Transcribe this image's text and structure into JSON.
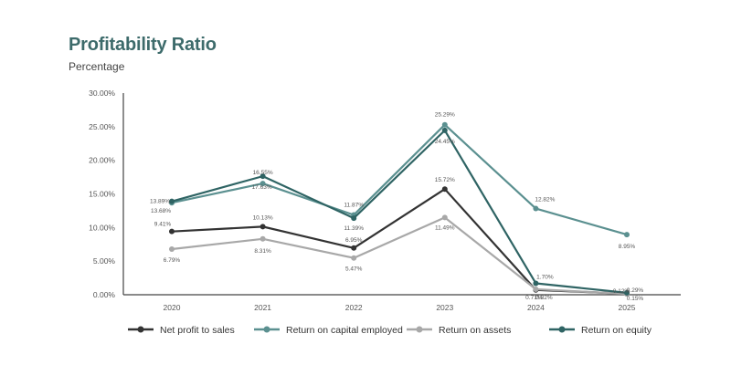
{
  "header": {
    "title": "Profitability Ratio",
    "subtitle": "Percentage"
  },
  "chart_data": {
    "type": "line",
    "title": "Profitability Ratio",
    "subtitle": "Percentage",
    "x": [
      "2020",
      "2021",
      "2022",
      "2023",
      "2024",
      "2025"
    ],
    "ylim": [
      0,
      30
    ],
    "yticks": [
      "0.00%",
      "5.00%",
      "10.00%",
      "15.00%",
      "20.00%",
      "25.00%",
      "30.00%"
    ],
    "grid": false,
    "legend": "bottom",
    "series": [
      {
        "name": "Net profit to sales",
        "color": "#333333",
        "values": [
          9.41,
          10.13,
          6.95,
          15.72,
          0.71,
          0.15
        ],
        "labels": [
          "9.41%",
          "10.13%",
          "6.95%",
          "15.72%",
          "0.71%",
          "0.15%"
        ]
      },
      {
        "name": "Return on capital employed",
        "color": "#5b9090",
        "values": [
          13.68,
          16.55,
          11.87,
          25.29,
          12.82,
          8.95
        ],
        "labels": [
          "13.68%",
          "16.55%",
          "11.87%",
          "25.29%",
          "12.82%",
          "8.95%"
        ]
      },
      {
        "name": "Return on assets",
        "color": "#a8a8a8",
        "values": [
          6.79,
          8.31,
          5.47,
          11.49,
          0.82,
          0.12
        ],
        "labels": [
          "6.79%",
          "8.31%",
          "5.47%",
          "11.49%",
          "0.82%",
          "0.12%"
        ]
      },
      {
        "name": "Return on equity",
        "color": "#2f6464",
        "values": [
          13.89,
          17.63,
          11.39,
          24.45,
          1.7,
          0.29
        ],
        "labels": [
          "13.89%",
          "17.63%",
          "11.39%",
          "24.45%",
          "1.70%",
          "0.29%"
        ]
      }
    ]
  }
}
